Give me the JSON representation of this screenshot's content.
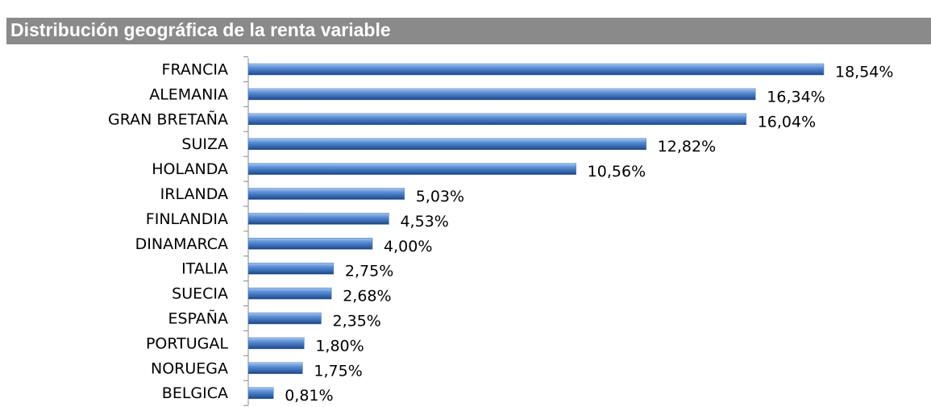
{
  "chart_data": {
    "type": "bar",
    "orientation": "horizontal",
    "title": "Distribución geográfica de la renta variable",
    "categories": [
      "FRANCIA",
      "ALEMANIA",
      "GRAN BRETAÑA",
      "SUIZA",
      "HOLANDA",
      "IRLANDA",
      "FINLANDIA",
      "DINAMARCA",
      "ITALIA",
      "SUECIA",
      "ESPAÑA",
      "PORTUGAL",
      "NORUEGA",
      "BELGICA"
    ],
    "values": [
      18.54,
      16.34,
      16.04,
      12.82,
      10.56,
      5.03,
      4.53,
      4.0,
      2.75,
      2.68,
      2.35,
      1.8,
      1.75,
      0.81
    ],
    "value_labels": [
      "18,54%",
      "16,34%",
      "16,04%",
      "12,82%",
      "10,56%",
      "5,03%",
      "4,53%",
      "4,00%",
      "2,75%",
      "2,68%",
      "2,35%",
      "1,80%",
      "1,75%",
      "0,81%"
    ],
    "color": "#4a7ebb"
  }
}
